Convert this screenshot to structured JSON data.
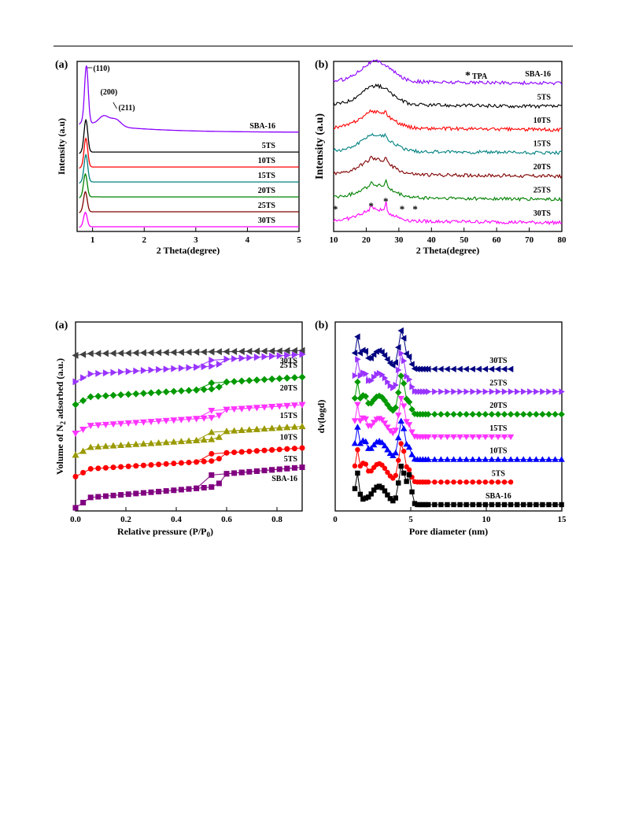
{
  "chart_data": [
    {
      "type": "line",
      "panel_label": "(a)",
      "xlabel": "2 Theta(degree)",
      "ylabel": "Intensity (a.u)",
      "xlim": [
        0.7,
        5
      ],
      "x_ticks": [
        "1",
        "2",
        "3",
        "4",
        "5"
      ],
      "annotations": [
        "(110)",
        "(200)",
        "(211)"
      ],
      "series": [
        {
          "name": "SBA-16",
          "color": "#8B00FF",
          "peak_x": 0.88,
          "peak_height": 8.0,
          "offset": 6.0,
          "tail": 0.6,
          "extra_peaks": [
            [
              1.22,
              1.3
            ],
            [
              1.45,
              1.0
            ]
          ]
        },
        {
          "name": "5TS",
          "color": "#000000",
          "peak_x": 0.87,
          "peak_height": 4.5,
          "offset": 5.0,
          "tail": 0.0,
          "extra_peaks": []
        },
        {
          "name": "10TS",
          "color": "#FF0000",
          "peak_x": 0.87,
          "peak_height": 4.0,
          "offset": 4.0,
          "tail": 0.0,
          "extra_peaks": []
        },
        {
          "name": "15TS",
          "color": "#008080",
          "peak_x": 0.87,
          "peak_height": 3.8,
          "offset": 3.0,
          "tail": 0.0,
          "extra_peaks": []
        },
        {
          "name": "20TS",
          "color": "#008000",
          "peak_x": 0.86,
          "peak_height": 3.2,
          "offset": 2.0,
          "tail": 0.0,
          "extra_peaks": []
        },
        {
          "name": "25TS",
          "color": "#800000",
          "peak_x": 0.86,
          "peak_height": 2.8,
          "offset": 1.0,
          "tail": 0.0,
          "extra_peaks": []
        },
        {
          "name": "30TS",
          "color": "#FF00FF",
          "peak_x": 0.86,
          "peak_height": 2.0,
          "offset": 0.0,
          "tail": 0.0,
          "extra_peaks": []
        }
      ]
    },
    {
      "type": "line",
      "panel_label": "(b)",
      "xlabel": "2 Theta(degree)",
      "ylabel": "Intensity (a.u)",
      "xlim": [
        10,
        80
      ],
      "x_ticks": [
        "10",
        "20",
        "30",
        "40",
        "50",
        "60",
        "70",
        "80"
      ],
      "legend_marker": "*",
      "legend_label": "TPA",
      "tpa_peaks": [
        10.5,
        21.5,
        26.0,
        31.0,
        35.0
      ],
      "series": [
        {
          "name": "SBA-16",
          "color": "#8B00FF",
          "offset": 6.0,
          "halo": 1.6,
          "sharp": 0.0
        },
        {
          "name": "5TS",
          "color": "#000000",
          "offset": 5.0,
          "halo": 1.5,
          "sharp": 0.2
        },
        {
          "name": "10TS",
          "color": "#FF0000",
          "offset": 4.0,
          "halo": 1.3,
          "sharp": 0.3
        },
        {
          "name": "15TS",
          "color": "#008080",
          "offset": 3.0,
          "halo": 1.3,
          "sharp": 0.4
        },
        {
          "name": "20TS",
          "color": "#800000",
          "offset": 2.0,
          "halo": 1.2,
          "sharp": 0.6
        },
        {
          "name": "25TS",
          "color": "#008000",
          "offset": 1.0,
          "halo": 1.0,
          "sharp": 0.8
        },
        {
          "name": "30TS",
          "color": "#FF00FF",
          "offset": 0.0,
          "halo": 0.9,
          "sharp": 1.0
        }
      ]
    },
    {
      "type": "scatter",
      "panel_label": "(a)",
      "xlabel": "Relative pressure (P/P",
      "xlabel_sub": "0",
      "xlabel_end": ")",
      "ylabel": "Volume of N",
      "ylabel_sub": "2",
      "ylabel_end": " adsorbed (a.u.)",
      "xlim": [
        0,
        0.9
      ],
      "x_ticks": [
        "0.0",
        "0.2",
        "0.4",
        "0.6",
        "0.8"
      ],
      "series": [
        {
          "name": "30TS",
          "color": "#404040",
          "marker": "tri-left",
          "base": 6.35,
          "slope": 0.2,
          "step": 0.0
        },
        {
          "name": "25TS",
          "color": "#9933FF",
          "marker": "tri-right",
          "base": 5.25,
          "slope": 0.9,
          "step": 0.25
        },
        {
          "name": "20TS",
          "color": "#009900",
          "marker": "diamond",
          "base": 4.3,
          "slope": 0.9,
          "step": 0.25
        },
        {
          "name": "15TS",
          "color": "#FF33FF",
          "marker": "tri-down",
          "base": 3.1,
          "slope": 0.9,
          "step": 0.3
        },
        {
          "name": "10TS",
          "color": "#999900",
          "marker": "tri-up",
          "base": 2.2,
          "slope": 0.9,
          "step": 0.3
        },
        {
          "name": "5TS",
          "color": "#FF0000",
          "marker": "circle",
          "base": 1.3,
          "slope": 0.9,
          "step": 0.3
        },
        {
          "name": "SBA-16",
          "color": "#800080",
          "marker": "square",
          "base": 0.0,
          "slope": 1.2,
          "step": 0.5
        }
      ]
    },
    {
      "type": "scatter",
      "panel_label": "(b)",
      "xlabel": "Pore diameter (nm)",
      "ylabel": "dv(logd)",
      "xlim": [
        0,
        15
      ],
      "x_ticks": [
        "0",
        "5",
        "10",
        "15"
      ],
      "series": [
        {
          "name": "30TS",
          "color": "#000080",
          "marker": "tri-left",
          "offset": 6.0,
          "xmax": 11.8
        },
        {
          "name": "25TS",
          "color": "#9933FF",
          "marker": "tri-right",
          "offset": 5.0,
          "xmax": 15.0
        },
        {
          "name": "20TS",
          "color": "#009900",
          "marker": "diamond",
          "offset": 4.0,
          "xmax": 15.0
        },
        {
          "name": "15TS",
          "color": "#FF33FF",
          "marker": "tri-down",
          "offset": 3.0,
          "xmax": 11.8
        },
        {
          "name": "10TS",
          "color": "#0000FF",
          "marker": "tri-up",
          "offset": 2.0,
          "xmax": 15.0
        },
        {
          "name": "5TS",
          "color": "#FF0000",
          "marker": "circle",
          "offset": 1.0,
          "xmax": 11.8
        },
        {
          "name": "SBA-16",
          "color": "#000000",
          "marker": "square",
          "offset": 0.0,
          "xmax": 15.0
        }
      ]
    }
  ]
}
